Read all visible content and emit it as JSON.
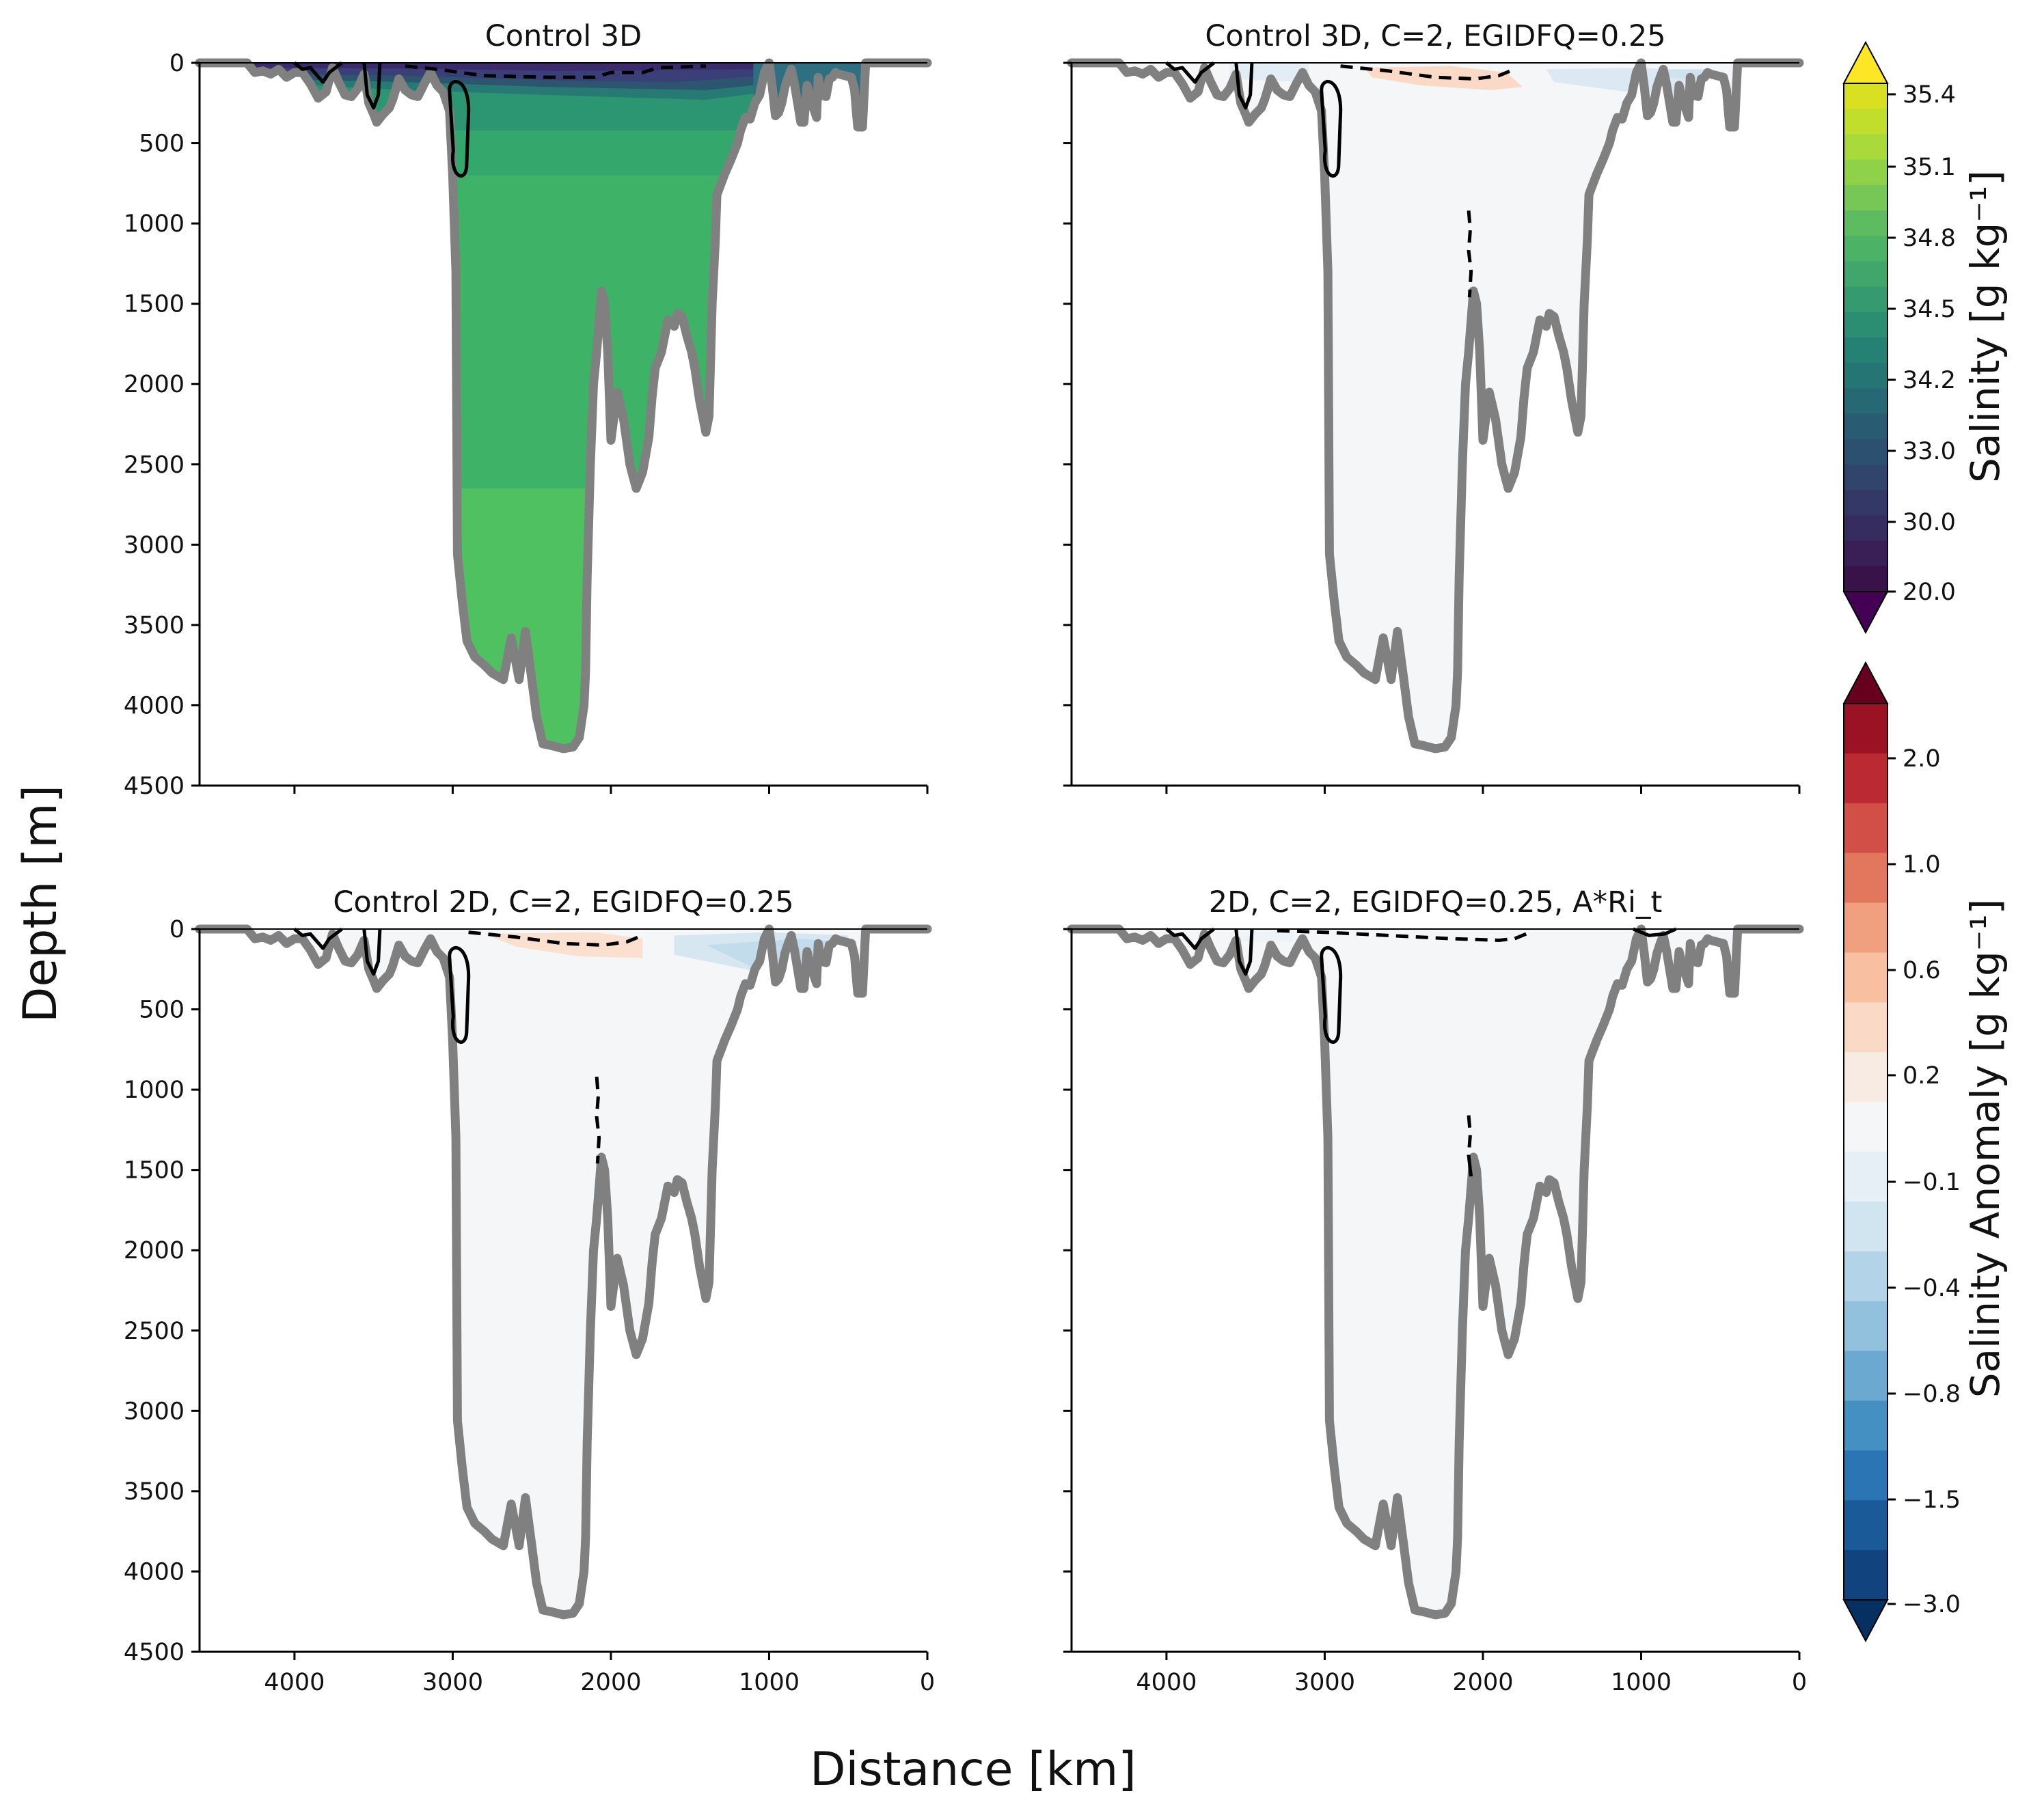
{
  "figure": {
    "ylabel": "Depth [m]",
    "xlabel": "Distance [km]"
  },
  "colorbars": {
    "salinity": {
      "label": "Salinity [g kg⁻¹]",
      "ticks": [
        "35.4",
        "35.1",
        "34.8",
        "34.5",
        "34.2",
        "33.0",
        "30.0",
        "20.0"
      ],
      "colors": [
        "#d9e021",
        "#c2de2c",
        "#a9d93a",
        "#8fd148",
        "#76c755",
        "#5dbc5f",
        "#4cb266",
        "#40a66c",
        "#359a6f",
        "#2b8e72",
        "#258173",
        "#247573",
        "#266873",
        "#295c72",
        "#2c5070",
        "#30446c",
        "#343867",
        "#372c60",
        "#391f56",
        "#3a124a"
      ],
      "upper_cap": "#fde725",
      "lower_cap": "#440154"
    },
    "anomaly": {
      "label": "Salinity Anomaly [g kg⁻¹]",
      "ticks": [
        "2.0",
        "1.0",
        "0.6",
        "0.2",
        "−0.1",
        "−0.4",
        "−0.8",
        "−1.5",
        "−3.0"
      ],
      "colors": [
        "#9b1225",
        "#bb2a33",
        "#d24f47",
        "#e2775d",
        "#f09f7f",
        "#f8bfa1",
        "#fadac6",
        "#f7ebe3",
        "#f5f6f7",
        "#e6eff6",
        "#d1e5f0",
        "#b3d4e8",
        "#92c1dd",
        "#6ba9d0",
        "#4590c3",
        "#2c75b4",
        "#1a5a99",
        "#11447e"
      ],
      "upper_cap": "#67001f",
      "lower_cap": "#053061"
    }
  },
  "chart_data": [
    {
      "type": "heatmap",
      "title": "Control 3D",
      "xlabel": "Distance [km]",
      "ylabel": "Depth [m]",
      "xlim": [
        4600,
        0
      ],
      "ylim": [
        4500,
        0
      ],
      "xticks": [
        "4000",
        "3000",
        "2000",
        "1000",
        "0"
      ],
      "yticks": [
        "0",
        "500",
        "1000",
        "1500",
        "2000",
        "2500",
        "3000",
        "3500",
        "4000",
        "4500"
      ],
      "field": "salinity",
      "fill": "salinity",
      "notes": "deep water ~34.9 g/kg, fresher surface layer (~30-33 g/kg)"
    },
    {
      "type": "heatmap",
      "title": "Control 3D, C=2, EGIDFQ=0.25",
      "xlabel": "Distance [km]",
      "ylabel": "Depth [m]",
      "xlim": [
        4600,
        0
      ],
      "ylim": [
        4500,
        0
      ],
      "xticks": [
        "4000",
        "3000",
        "2000",
        "1000",
        "0"
      ],
      "yticks": [
        "0",
        "500",
        "1000",
        "1500",
        "2000",
        "2500",
        "3000",
        "3500",
        "4000",
        "4500"
      ],
      "field": "salinity anomaly",
      "fill": "anomaly",
      "notes": "near-zero anomaly at depth, weak positive surface anomaly ~2700-1900 km, weak negative near 1000-400 km"
    },
    {
      "type": "heatmap",
      "title": "Control 2D, C=2, EGIDFQ=0.25",
      "xlabel": "Distance [km]",
      "ylabel": "Depth [m]",
      "xlim": [
        4600,
        0
      ],
      "ylim": [
        4500,
        0
      ],
      "xticks": [
        "4000",
        "3000",
        "2000",
        "1000",
        "0"
      ],
      "yticks": [
        "0",
        "500",
        "1000",
        "1500",
        "2000",
        "2500",
        "3000",
        "3500",
        "4000",
        "4500"
      ],
      "field": "salinity anomaly",
      "fill": "anomaly",
      "notes": "weak positive surface anomaly ~2800-1800 km, weak negative ~1600-400 km"
    },
    {
      "type": "heatmap",
      "title": "2D, C=2, EGIDFQ=0.25, A*Ri_t",
      "xlabel": "Distance [km]",
      "ylabel": "Depth [m]",
      "xlim": [
        4600,
        0
      ],
      "ylim": [
        4500,
        0
      ],
      "xticks": [
        "4000",
        "3000",
        "2000",
        "1000",
        "0"
      ],
      "yticks": [
        "0",
        "500",
        "1000",
        "1500",
        "2000",
        "2500",
        "3000",
        "3500",
        "4000",
        "4500"
      ],
      "field": "salinity anomaly",
      "fill": "anomaly",
      "notes": "anomaly near zero everywhere"
    }
  ],
  "bathymetry": [
    [
      4600,
      0
    ],
    [
      4300,
      0
    ],
    [
      4250,
      60
    ],
    [
      4200,
      50
    ],
    [
      4150,
      70
    ],
    [
      4100,
      40
    ],
    [
      4050,
      90
    ],
    [
      4000,
      60
    ],
    [
      3950,
      60
    ],
    [
      3900,
      130
    ],
    [
      3850,
      220
    ],
    [
      3800,
      180
    ],
    [
      3760,
      30
    ],
    [
      3720,
      120
    ],
    [
      3680,
      200
    ],
    [
      3640,
      210
    ],
    [
      3600,
      160
    ],
    [
      3560,
      70
    ],
    [
      3530,
      250
    ],
    [
      3500,
      320
    ],
    [
      3480,
      370
    ],
    [
      3440,
      320
    ],
    [
      3400,
      280
    ],
    [
      3380,
      230
    ],
    [
      3340,
      100
    ],
    [
      3300,
      170
    ],
    [
      3260,
      200
    ],
    [
      3220,
      210
    ],
    [
      3180,
      130
    ],
    [
      3140,
      60
    ],
    [
      3100,
      140
    ],
    [
      3060,
      180
    ],
    [
      3020,
      300
    ],
    [
      3000,
      700
    ],
    [
      2980,
      1300
    ],
    [
      2970,
      3060
    ],
    [
      2940,
      3350
    ],
    [
      2910,
      3600
    ],
    [
      2860,
      3700
    ],
    [
      2800,
      3750
    ],
    [
      2750,
      3800
    ],
    [
      2680,
      3840
    ],
    [
      2630,
      3580
    ],
    [
      2580,
      3840
    ],
    [
      2540,
      3540
    ],
    [
      2500,
      3840
    ],
    [
      2470,
      4070
    ],
    [
      2430,
      4240
    ],
    [
      2380,
      4250
    ],
    [
      2300,
      4270
    ],
    [
      2240,
      4260
    ],
    [
      2200,
      4200
    ],
    [
      2170,
      4000
    ],
    [
      2160,
      3790
    ],
    [
      2150,
      3200
    ],
    [
      2130,
      2500
    ],
    [
      2110,
      2000
    ],
    [
      2090,
      1800
    ],
    [
      2060,
      1420
    ],
    [
      2040,
      1500
    ],
    [
      2020,
      1800
    ],
    [
      2000,
      2350
    ],
    [
      1980,
      2200
    ],
    [
      1960,
      2050
    ],
    [
      1920,
      2220
    ],
    [
      1880,
      2500
    ],
    [
      1840,
      2650
    ],
    [
      1800,
      2550
    ],
    [
      1760,
      2330
    ],
    [
      1740,
      2080
    ],
    [
      1720,
      1900
    ],
    [
      1680,
      1800
    ],
    [
      1640,
      1600
    ],
    [
      1600,
      1640
    ],
    [
      1580,
      1560
    ],
    [
      1550,
      1580
    ],
    [
      1520,
      1700
    ],
    [
      1490,
      1800
    ],
    [
      1470,
      1900
    ],
    [
      1440,
      2100
    ],
    [
      1420,
      2200
    ],
    [
      1400,
      2300
    ],
    [
      1380,
      2200
    ],
    [
      1360,
      1500
    ],
    [
      1340,
      1100
    ],
    [
      1330,
      820
    ],
    [
      1280,
      690
    ],
    [
      1240,
      600
    ],
    [
      1200,
      500
    ],
    [
      1180,
      420
    ],
    [
      1150,
      340
    ],
    [
      1120,
      350
    ],
    [
      1090,
      250
    ],
    [
      1060,
      200
    ],
    [
      1030,
      60
    ],
    [
      1000,
      0
    ],
    [
      980,
      150
    ],
    [
      960,
      330
    ],
    [
      940,
      310
    ],
    [
      920,
      250
    ],
    [
      900,
      150
    ],
    [
      880,
      90
    ],
    [
      860,
      40
    ],
    [
      840,
      130
    ],
    [
      800,
      370
    ],
    [
      780,
      370
    ],
    [
      760,
      140
    ],
    [
      740,
      220
    ],
    [
      700,
      340
    ],
    [
      690,
      90
    ],
    [
      670,
      200
    ],
    [
      640,
      210
    ],
    [
      620,
      100
    ],
    [
      600,
      90
    ],
    [
      580,
      60
    ],
    [
      560,
      70
    ],
    [
      520,
      80
    ],
    [
      480,
      90
    ],
    [
      460,
      170
    ],
    [
      450,
      290
    ],
    [
      440,
      400
    ],
    [
      410,
      400
    ],
    [
      400,
      200
    ],
    [
      390,
      0
    ],
    [
      0,
      0
    ]
  ]
}
